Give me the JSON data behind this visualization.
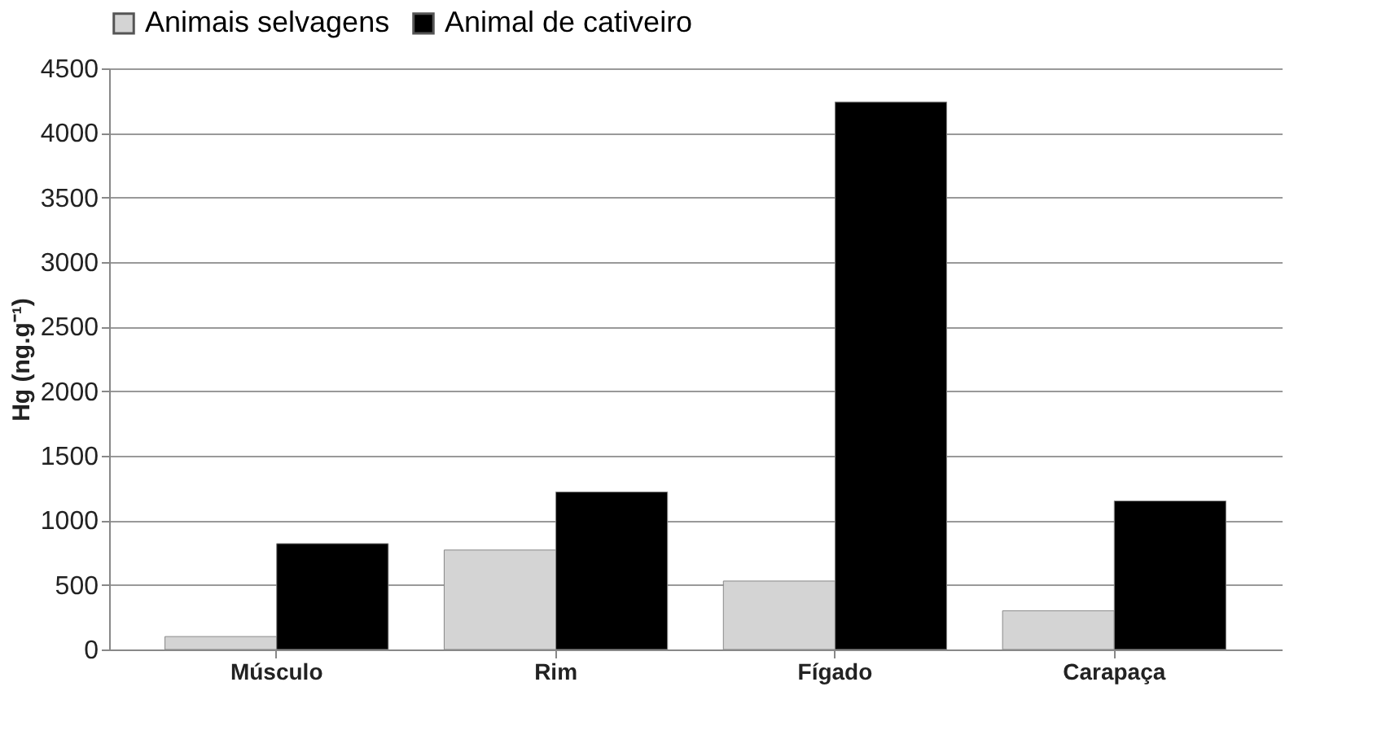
{
  "chart_data": {
    "type": "bar",
    "ylabel": "Hg (ng.g⁻¹)",
    "categories": [
      "Músculo",
      "Rim",
      "Fígado",
      "Carapaça"
    ],
    "series": [
      {
        "name": "Animais selvagens",
        "color": "#d4d4d4",
        "values": [
          100,
          770,
          530,
          300
        ]
      },
      {
        "name": "Animal de cativeiro",
        "color": "#000000",
        "values": [
          820,
          1220,
          4240,
          1150
        ]
      }
    ],
    "ylim": [
      0,
      4500
    ],
    "yticks": [
      0,
      500,
      1000,
      1500,
      2000,
      2500,
      3000,
      3500,
      4000,
      4500
    ],
    "grid": "y",
    "legend": "top"
  }
}
